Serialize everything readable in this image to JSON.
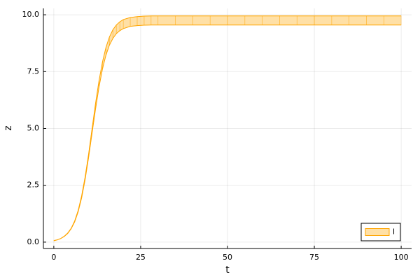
{
  "chart_data": {
    "type": "band",
    "xlabel": "t",
    "ylabel": "z",
    "x": [
      0,
      1,
      2,
      3,
      4,
      5,
      6,
      7,
      8,
      9,
      10,
      11,
      12,
      13,
      14,
      15,
      16,
      17,
      18,
      19,
      20,
      22,
      24,
      26,
      28,
      30,
      35,
      40,
      45,
      50,
      55,
      60,
      65,
      70,
      75,
      80,
      85,
      90,
      95,
      100
    ],
    "series": [
      {
        "name": "l",
        "color": "#ffa500",
        "upper": [
          0.07,
          0.1,
          0.16,
          0.26,
          0.4,
          0.61,
          0.93,
          1.39,
          2.03,
          2.86,
          3.86,
          4.98,
          6.09,
          7.09,
          7.92,
          8.56,
          9.02,
          9.34,
          9.55,
          9.69,
          9.79,
          9.88,
          9.92,
          9.94,
          9.95,
          9.95,
          9.95,
          9.95,
          9.95,
          9.95,
          9.95,
          9.95,
          9.95,
          9.95,
          9.95,
          9.95,
          9.95,
          9.95,
          9.95,
          9.95
        ],
        "lower": [
          0.06,
          0.1,
          0.16,
          0.25,
          0.38,
          0.59,
          0.89,
          1.33,
          1.94,
          2.74,
          3.71,
          4.78,
          5.84,
          6.81,
          7.61,
          8.22,
          8.66,
          8.96,
          9.17,
          9.3,
          9.39,
          9.49,
          9.52,
          9.54,
          9.55,
          9.55,
          9.55,
          9.55,
          9.55,
          9.55,
          9.55,
          9.55,
          9.55,
          9.55,
          9.55,
          9.55,
          9.55,
          9.55,
          9.55,
          9.55
        ]
      }
    ],
    "xlim": [
      -3,
      103
    ],
    "ylim": [
      -0.28,
      10.28
    ],
    "xticks": [
      0,
      25,
      50,
      75,
      100
    ],
    "yticks": [
      {
        "value": 0,
        "label": "0.0"
      },
      {
        "value": 2.5,
        "label": "2.5"
      },
      {
        "value": 5,
        "label": "5.0"
      },
      {
        "value": 7.5,
        "label": "7.5"
      },
      {
        "value": 10,
        "label": "10.0"
      }
    ],
    "grid": true,
    "legend": "bottom right"
  }
}
